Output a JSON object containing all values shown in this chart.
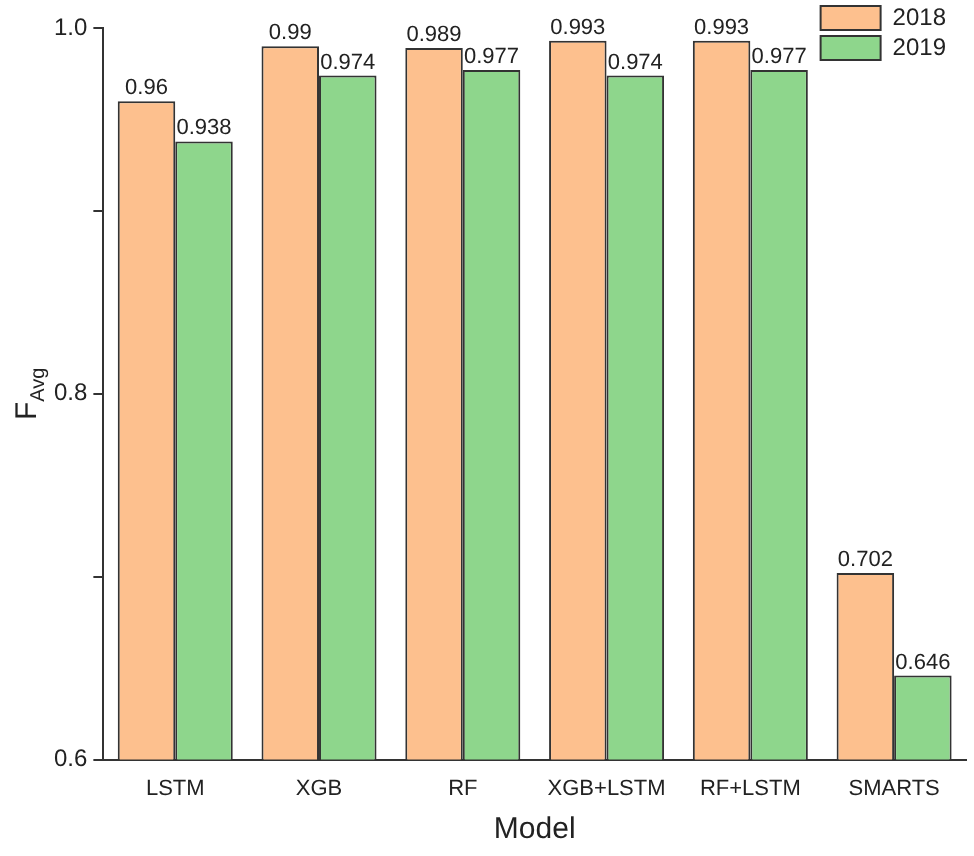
{
  "chart_data": {
    "type": "bar",
    "xlabel": "Model",
    "ylabel": "F$_{Avg}$",
    "categories": [
      "LSTM",
      "XGB",
      "RF",
      "XGB+LSTM",
      "RF+LSTM",
      "SMARTS"
    ],
    "series": [
      {
        "name": "2018",
        "color": "#fdc08e",
        "values": [
          0.96,
          0.99,
          0.989,
          0.993,
          0.993,
          0.702
        ]
      },
      {
        "name": "2019",
        "color": "#8ed68c",
        "values": [
          0.938,
          0.974,
          0.977,
          0.974,
          0.977,
          0.646
        ]
      }
    ],
    "ylim": [
      0.6,
      1.0
    ],
    "yticks": [
      0.6,
      {
        "value": 0.7,
        "label": null
      },
      0.8,
      {
        "value": 0.9,
        "label": null
      },
      {
        "value": 1.0,
        "label": "1.0"
      }
    ],
    "grid": false,
    "legend": "top right",
    "data_labels": true
  }
}
